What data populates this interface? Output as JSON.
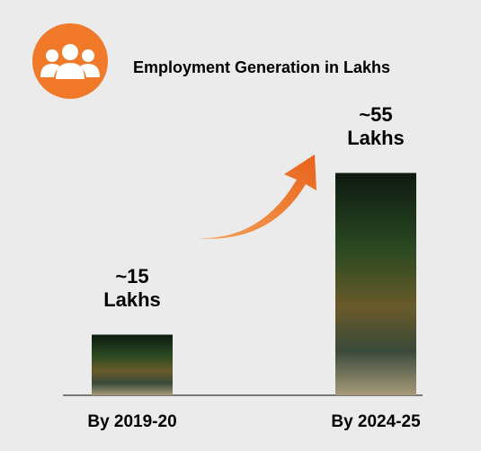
{
  "chart_data": {
    "type": "bar",
    "title": "Employment Generation in Lakhs",
    "categories": [
      "By 2019-20",
      "By 2024-25"
    ],
    "values": [
      15,
      55
    ],
    "value_labels": [
      "~15 Lakhs",
      "~55 Lakhs"
    ]
  }
}
